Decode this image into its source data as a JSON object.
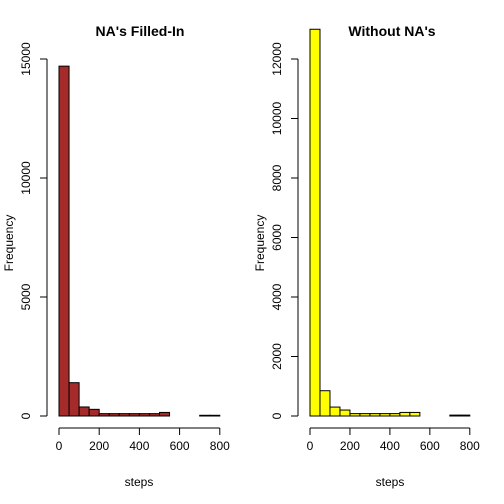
{
  "chart_data": [
    {
      "type": "bar",
      "title": "NA's Filled-In",
      "xlabel": "steps",
      "ylabel": "Frequency",
      "color": "#a52a2a",
      "bin_width": 50,
      "x": [
        25,
        75,
        125,
        175,
        225,
        275,
        325,
        375,
        425,
        475,
        525,
        575,
        625,
        675,
        725,
        775
      ],
      "values": [
        14700,
        1400,
        380,
        280,
        100,
        100,
        100,
        100,
        100,
        100,
        150,
        0,
        0,
        0,
        30,
        30
      ],
      "xlim": [
        0,
        806
      ],
      "ylim": [
        0,
        15000
      ],
      "xticks": [
        0,
        200,
        400,
        600,
        800
      ],
      "yticks": [
        0,
        5000,
        10000,
        15000
      ]
    },
    {
      "type": "bar",
      "title": "Without NA's",
      "xlabel": "steps",
      "ylabel": "Frequency",
      "color": "#ffff00",
      "bin_width": 50,
      "x": [
        25,
        75,
        125,
        175,
        225,
        275,
        325,
        375,
        425,
        475,
        525,
        575,
        625,
        675,
        725,
        775
      ],
      "values": [
        13000,
        850,
        300,
        200,
        80,
        80,
        80,
        80,
        80,
        120,
        120,
        0,
        0,
        0,
        30,
        30
      ],
      "xlim": [
        0,
        806
      ],
      "ylim": [
        0,
        12000
      ],
      "xticks": [
        0,
        200,
        400,
        600,
        800
      ],
      "yticks": [
        0,
        2000,
        4000,
        6000,
        8000,
        10000,
        12000
      ]
    }
  ]
}
